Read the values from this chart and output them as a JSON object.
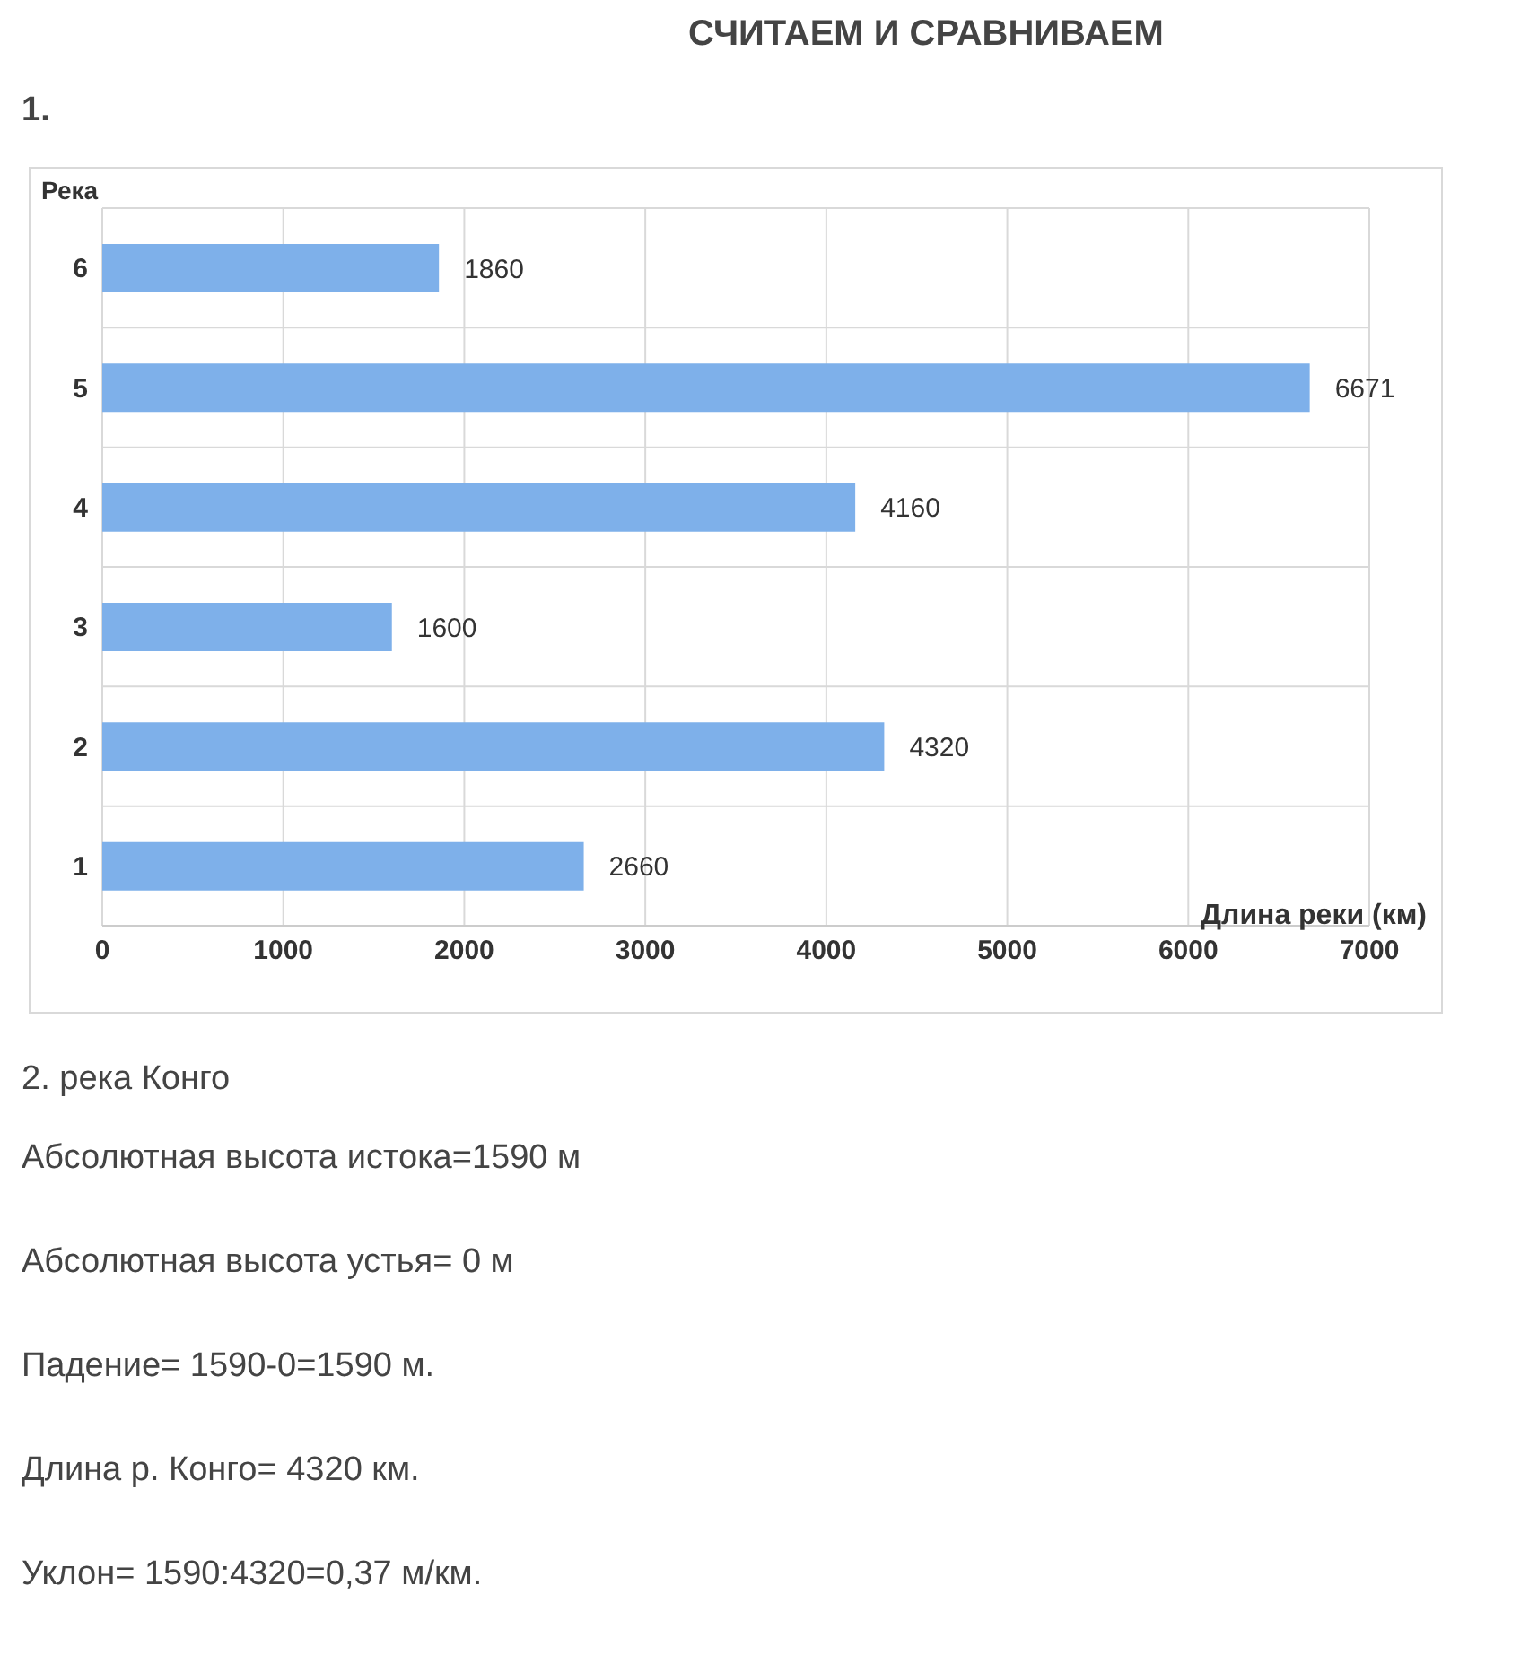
{
  "chart_data": {
    "type": "bar",
    "orientation": "horizontal",
    "title": "СЧИТАЕМ И СРАВНИВАЕМ",
    "subtitle": "1.",
    "ylabel": "Река",
    "xlabel": "Длина реки (км)",
    "categories": [
      "6",
      "5",
      "4",
      "3",
      "2",
      "1"
    ],
    "values": [
      1860,
      6671,
      4160,
      1600,
      4320,
      2660
    ],
    "color": "#7eb0ea",
    "xlim": [
      0,
      7000
    ],
    "xticks": [
      0,
      1000,
      2000,
      3000,
      4000,
      5000,
      6000,
      7000
    ],
    "grid": true,
    "data_labels": true,
    "annotations": [
      "2. река Конго",
      "Абсолютная высота истока=1590 м",
      "Абсолютная высота устья= 0 м",
      "Падение= 1590-0=1590 м.",
      "Длина р. Конго= 4320 км.",
      "Уклон= 1590:4320=0,37 м/км."
    ]
  }
}
